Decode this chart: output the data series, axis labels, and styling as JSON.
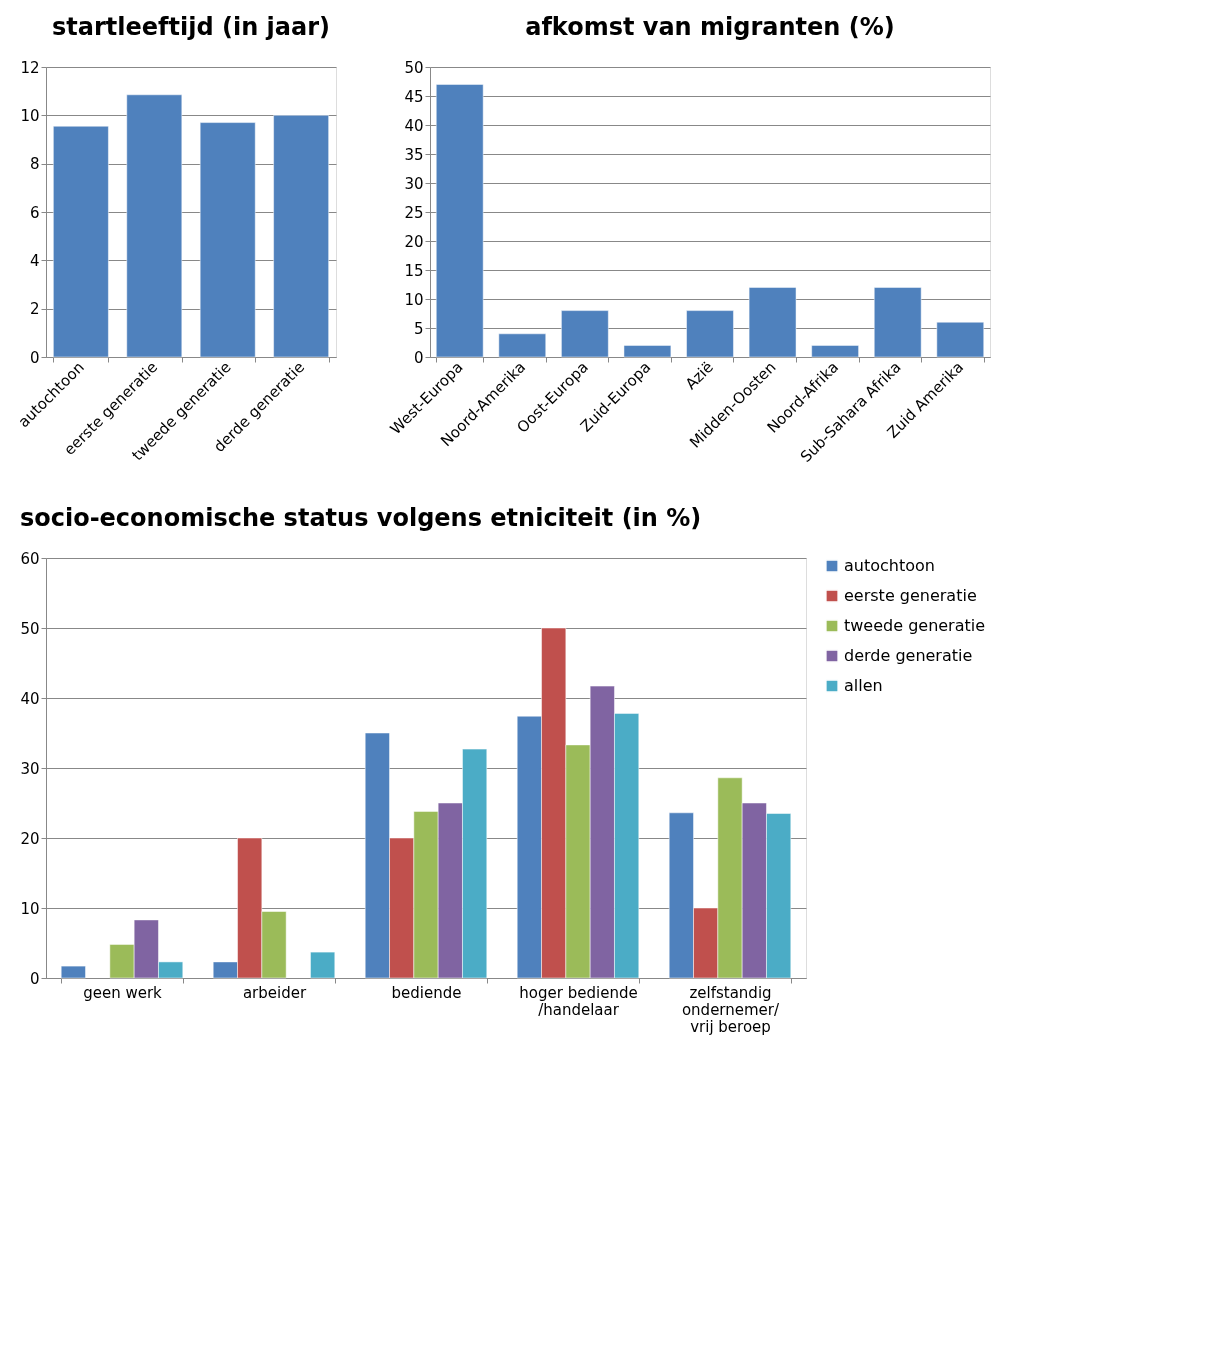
{
  "chart_data": [
    {
      "type": "bar",
      "title": "startleeftijd (in jaar)",
      "categories": [
        "autochtoon",
        "eerste generatie",
        "tweede generatie",
        "derde generatie"
      ],
      "values": [
        9.55,
        10.85,
        9.7,
        10.0
      ],
      "color": "#4f81bd",
      "ylim": [
        0,
        12
      ],
      "yticks": [
        0,
        2,
        4,
        6,
        8,
        10,
        12
      ],
      "grid": "y"
    },
    {
      "type": "bar",
      "title": "afkomst van migranten (%)",
      "categories": [
        "West-Europa",
        "Noord-Amerika",
        "Oost-Europa",
        "Zuid-Europa",
        "Azië",
        "Midden-Oosten",
        "Noord-Afrika",
        "Sub-Sahara Afrika",
        "Zuid Amerika"
      ],
      "values": [
        47,
        4,
        8,
        2,
        8,
        12,
        2,
        12,
        6
      ],
      "color": "#4f81bd",
      "ylim": [
        0,
        50
      ],
      "yticks": [
        0,
        5,
        10,
        15,
        20,
        25,
        30,
        35,
        40,
        45,
        50
      ],
      "grid": "y"
    },
    {
      "type": "bar",
      "title": "socio-economische status volgens etniciteit (in %)",
      "categories": [
        "geen werk",
        "arbeider",
        "bediende",
        "hoger bediende\n/handelaar",
        "zelfstandig\nondernemer/\nvrij beroep"
      ],
      "ylim": [
        0,
        60
      ],
      "yticks": [
        0,
        10,
        20,
        30,
        40,
        50,
        60
      ],
      "grid": "y",
      "legend": "right",
      "series": [
        {
          "name": "autochtoon",
          "color": "#4f81bd",
          "values": [
            1.7,
            2.3,
            35,
            37.4,
            23.6
          ]
        },
        {
          "name": "eerste generatie",
          "color": "#c0504d",
          "values": [
            null,
            20,
            20,
            50,
            10
          ]
        },
        {
          "name": "tweede generatie",
          "color": "#9bbb59",
          "values": [
            4.8,
            9.5,
            23.8,
            33.3,
            28.6
          ]
        },
        {
          "name": "derde generatie",
          "color": "#8064a2",
          "values": [
            8.3,
            null,
            25,
            41.7,
            25
          ]
        },
        {
          "name": "allen",
          "color": "#4bacc6",
          "values": [
            2.3,
            3.7,
            32.7,
            37.8,
            23.5
          ]
        }
      ]
    }
  ]
}
